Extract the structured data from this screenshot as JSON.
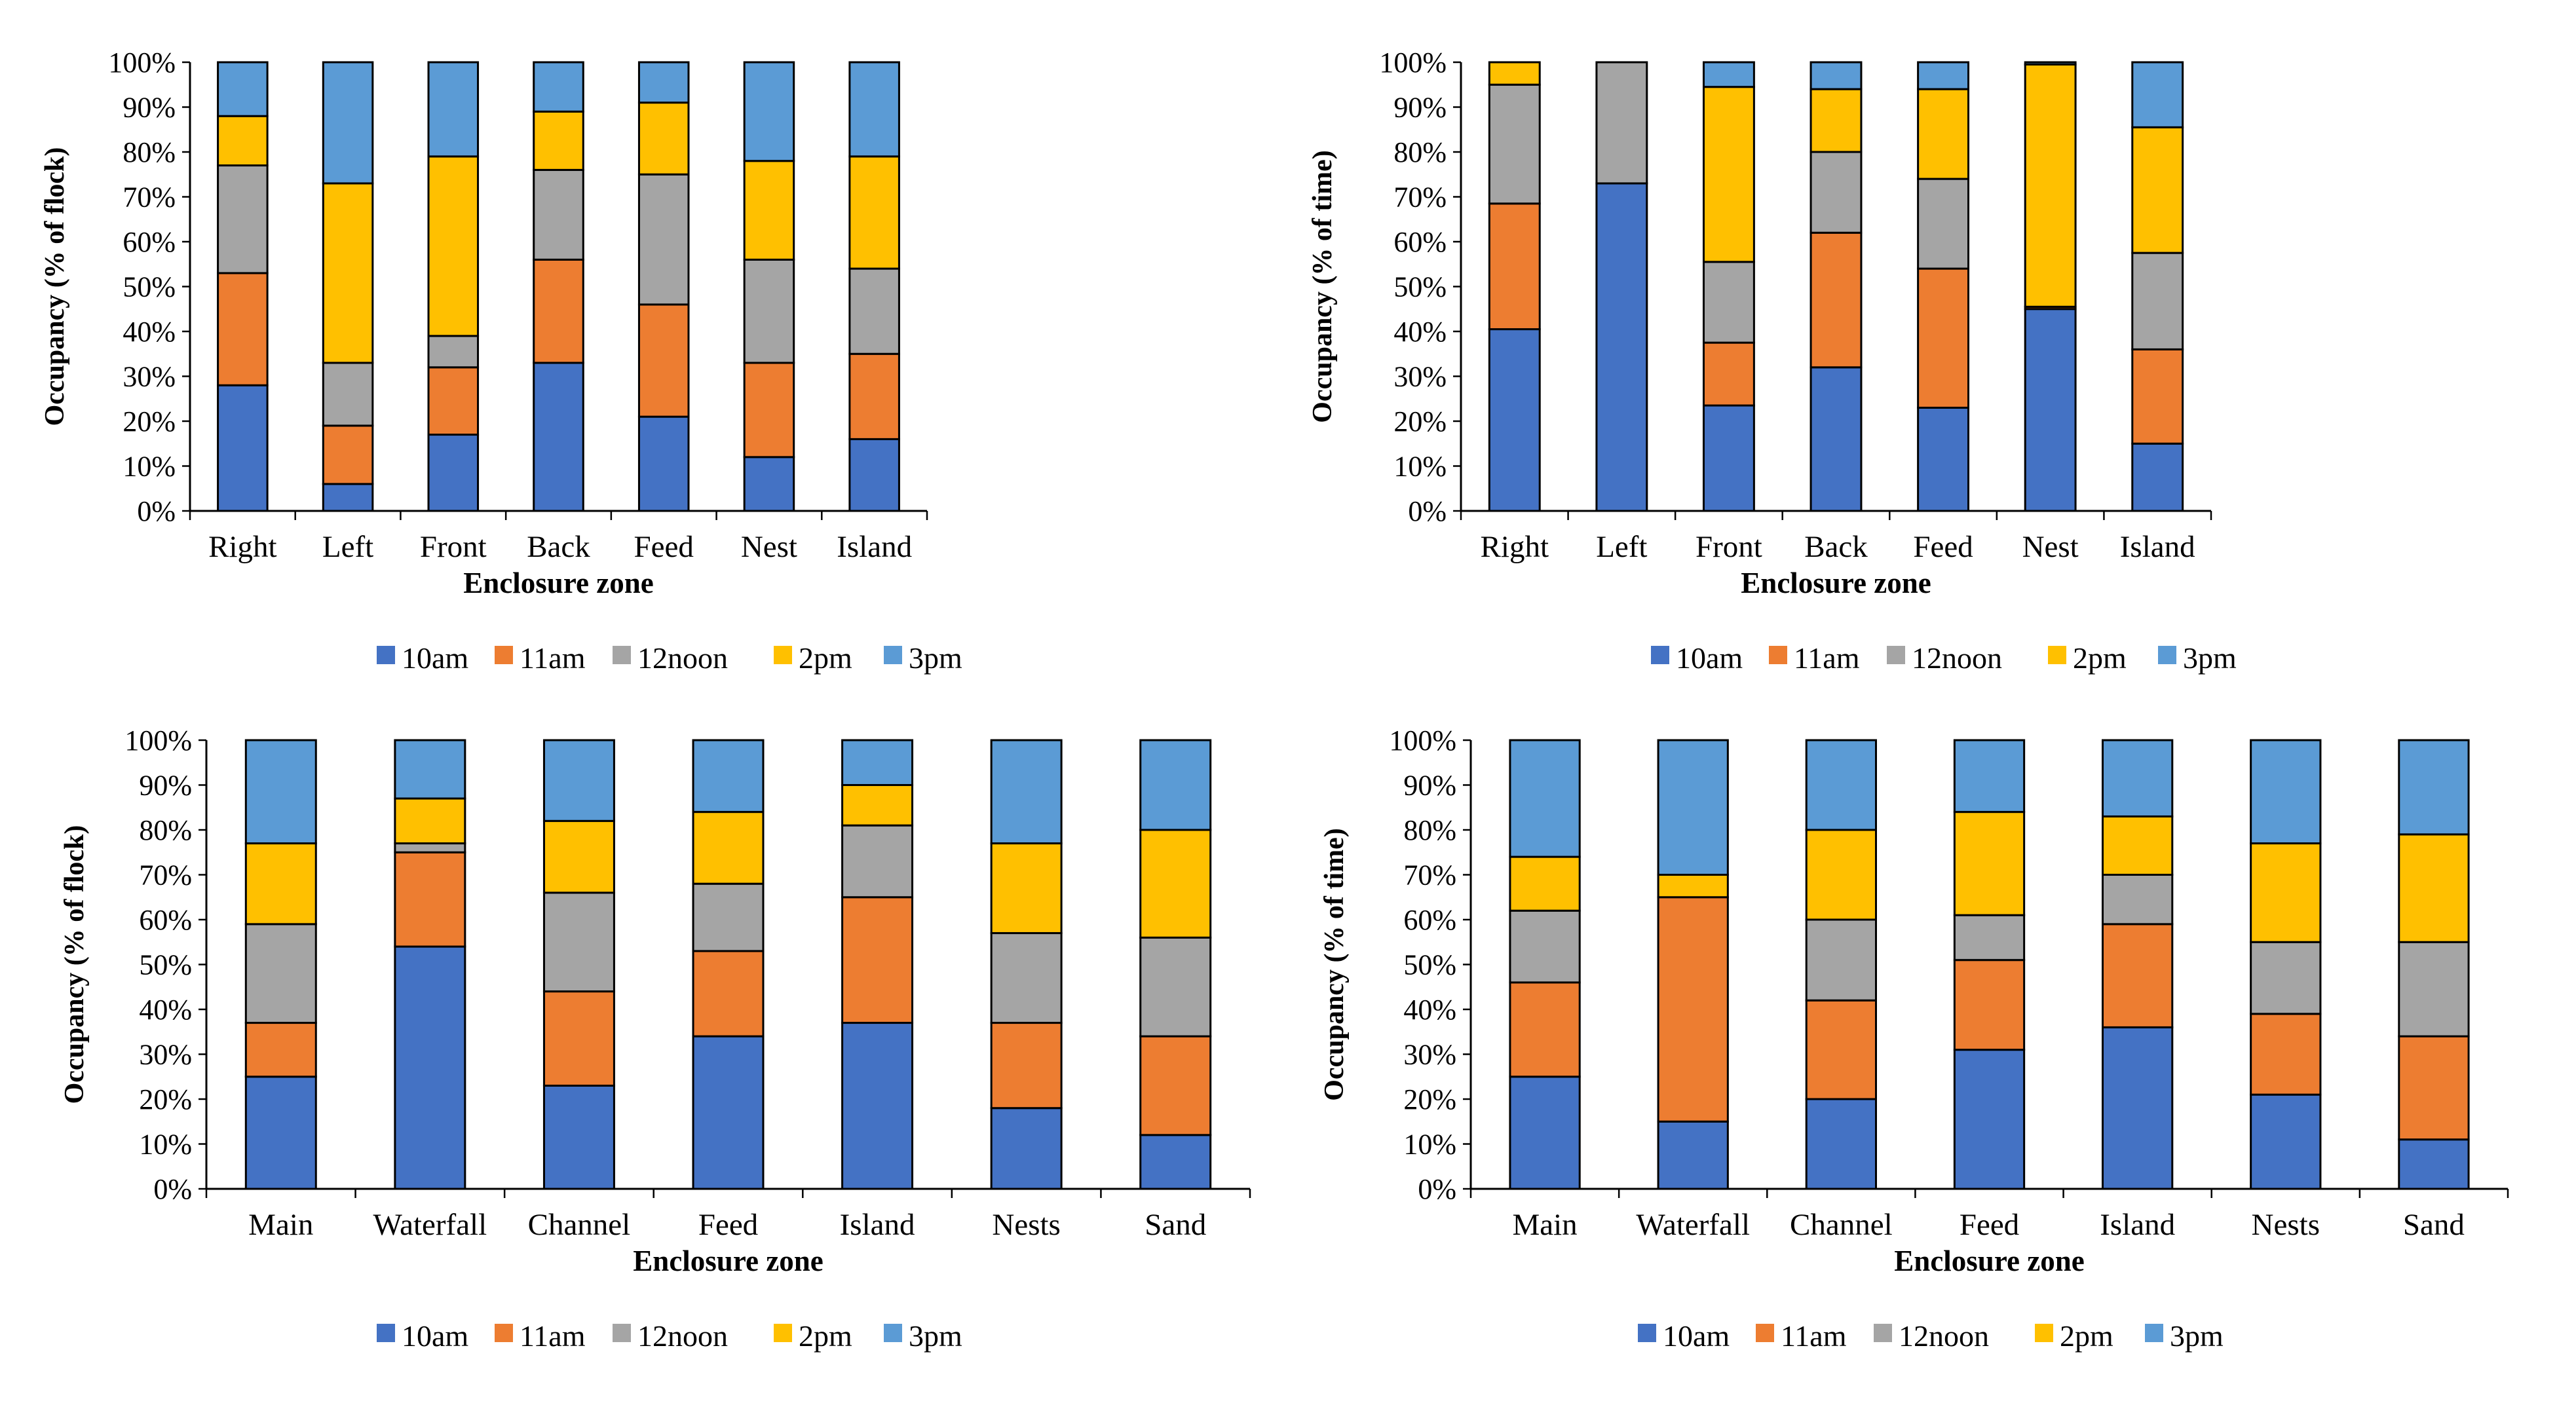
{
  "colors": {
    "10am": "#4472c4",
    "11am": "#ed7d31",
    "12noon": "#a5a5a5",
    "2pm": "#ffc000",
    "3pm": "#5b9bd5",
    "axis": "#000000"
  },
  "chart_data": [
    {
      "type": "bar",
      "stacked": true,
      "xlabel": "Enclosure zone",
      "ylabel": "Occupancy (% of flock)",
      "ylim": [
        0,
        100
      ],
      "yticks": [
        "0%",
        "10%",
        "20%",
        "30%",
        "40%",
        "50%",
        "60%",
        "70%",
        "80%",
        "90%",
        "100%"
      ],
      "legend_position": "bottom",
      "categories": [
        "Right",
        "Left",
        "Front",
        "Back",
        "Feed",
        "Nest",
        "Island"
      ],
      "series": [
        {
          "name": "10am",
          "values": [
            28,
            6,
            17,
            33,
            21,
            12,
            16
          ]
        },
        {
          "name": "11am",
          "values": [
            25,
            13,
            15,
            23,
            25,
            21,
            19
          ]
        },
        {
          "name": "12noon",
          "values": [
            24,
            14,
            7,
            20,
            29,
            23,
            19
          ]
        },
        {
          "name": "2pm",
          "values": [
            11,
            40,
            40,
            13,
            16,
            22,
            25
          ]
        },
        {
          "name": "3pm",
          "values": [
            12,
            27,
            21,
            11,
            9,
            22,
            21
          ]
        }
      ]
    },
    {
      "type": "bar",
      "stacked": true,
      "xlabel": "Enclosure zone",
      "ylabel": "Occupancy (% of time)",
      "ylim": [
        0,
        100
      ],
      "yticks": [
        "0%",
        "10%",
        "20%",
        "30%",
        "40%",
        "50%",
        "60%",
        "70%",
        "80%",
        "90%",
        "100%"
      ],
      "legend_position": "bottom",
      "categories": [
        "Right",
        "Left",
        "Front",
        "Back",
        "Feed",
        "Nest",
        "Island"
      ],
      "series": [
        {
          "name": "10am",
          "values": [
            40.5,
            73,
            23.5,
            32,
            23,
            45,
            15
          ]
        },
        {
          "name": "11am",
          "values": [
            28,
            0,
            14,
            30,
            31,
            0.5,
            21
          ]
        },
        {
          "name": "12noon",
          "values": [
            26.5,
            27,
            18,
            18,
            20,
            0,
            21.5
          ]
        },
        {
          "name": "2pm",
          "values": [
            5,
            0,
            39,
            14,
            20,
            54,
            28
          ]
        },
        {
          "name": "3pm",
          "values": [
            0,
            0,
            5.5,
            6,
            6,
            0.5,
            14.5
          ]
        }
      ]
    },
    {
      "type": "bar",
      "stacked": true,
      "xlabel": "Enclosure zone",
      "ylabel": "Occupancy (% of flock)",
      "ylim": [
        0,
        100
      ],
      "yticks": [
        "0%",
        "10%",
        "20%",
        "30%",
        "40%",
        "50%",
        "60%",
        "70%",
        "80%",
        "90%",
        "100%"
      ],
      "legend_position": "bottom",
      "categories": [
        "Main",
        "Waterfall",
        "Channel",
        "Feed",
        "Island",
        "Nests",
        "Sand"
      ],
      "series": [
        {
          "name": "10am",
          "values": [
            25,
            54,
            23,
            34,
            37,
            18,
            12
          ]
        },
        {
          "name": "11am",
          "values": [
            12,
            21,
            21,
            19,
            28,
            19,
            22
          ]
        },
        {
          "name": "12noon",
          "values": [
            22,
            2,
            22,
            15,
            16,
            20,
            22
          ]
        },
        {
          "name": "2pm",
          "values": [
            18,
            10,
            16,
            16,
            9,
            20,
            24
          ]
        },
        {
          "name": "3pm",
          "values": [
            23,
            13,
            18,
            16,
            10,
            23,
            20
          ]
        }
      ]
    },
    {
      "type": "bar",
      "stacked": true,
      "xlabel": "Enclosure zone",
      "ylabel": "Occupancy (% of time)",
      "ylim": [
        0,
        100
      ],
      "yticks": [
        "0%",
        "10%",
        "20%",
        "30%",
        "40%",
        "50%",
        "60%",
        "70%",
        "80%",
        "90%",
        "100%"
      ],
      "legend_position": "bottom",
      "categories": [
        "Main",
        "Waterfall",
        "Channel",
        "Feed",
        "Island",
        "Nests",
        "Sand"
      ],
      "series": [
        {
          "name": "10am",
          "values": [
            25,
            15,
            20,
            31,
            36,
            21,
            11
          ]
        },
        {
          "name": "11am",
          "values": [
            21,
            50,
            22,
            20,
            23,
            18,
            23
          ]
        },
        {
          "name": "12noon",
          "values": [
            16,
            0,
            18,
            10,
            11,
            16,
            21
          ]
        },
        {
          "name": "2pm",
          "values": [
            12,
            5,
            20,
            23,
            13,
            22,
            24
          ]
        },
        {
          "name": "3pm",
          "values": [
            26,
            30,
            20,
            16,
            17,
            23,
            21
          ]
        }
      ]
    }
  ]
}
